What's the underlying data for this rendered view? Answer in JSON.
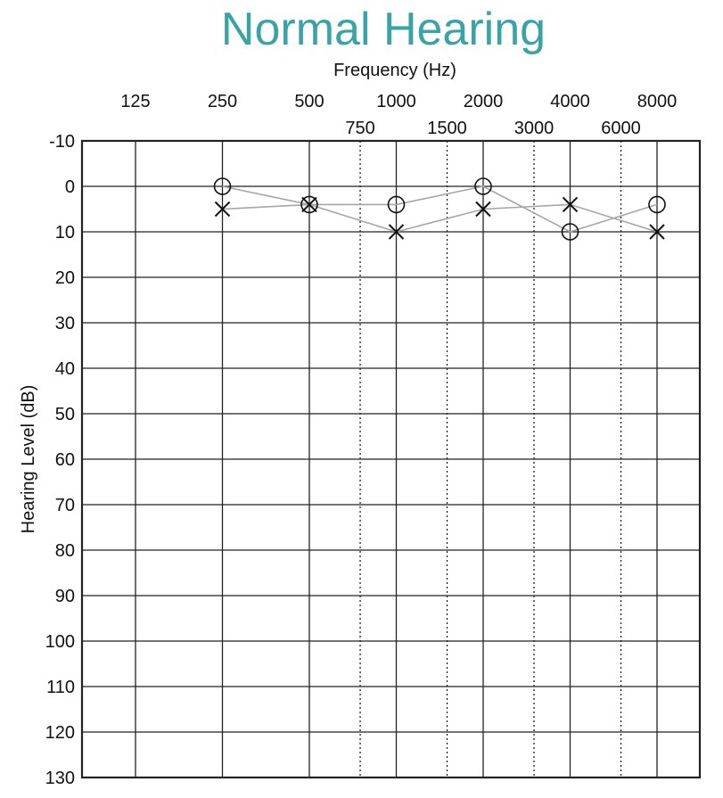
{
  "colors": {
    "title": "#3aa3a6",
    "grid": "#222222",
    "series_line": "#a6a6a6",
    "marker": "#111111"
  },
  "chart_data": {
    "type": "scatter",
    "title": "Normal Hearing",
    "xlabel": "Frequency (Hz)",
    "ylabel": "Hearing Level (dB)",
    "x_scale": "log",
    "x_major_ticks": [
      125,
      250,
      500,
      1000,
      2000,
      4000,
      8000
    ],
    "x_minor_ticks": [
      750,
      1500,
      3000,
      6000
    ],
    "y_ticks": [
      -10,
      0,
      10,
      20,
      30,
      40,
      50,
      60,
      70,
      80,
      90,
      100,
      110,
      120,
      130
    ],
    "ylim": [
      -10,
      130
    ],
    "y_inverted": true,
    "grid": true,
    "series": [
      {
        "marker": "circle",
        "x": [
          250,
          500,
          1000,
          2000,
          4000,
          8000
        ],
        "y": [
          0,
          4,
          4,
          0,
          10,
          4
        ]
      },
      {
        "marker": "cross",
        "x": [
          250,
          500,
          1000,
          2000,
          4000,
          8000
        ],
        "y": [
          5,
          4,
          10,
          5,
          4,
          10
        ]
      }
    ]
  }
}
